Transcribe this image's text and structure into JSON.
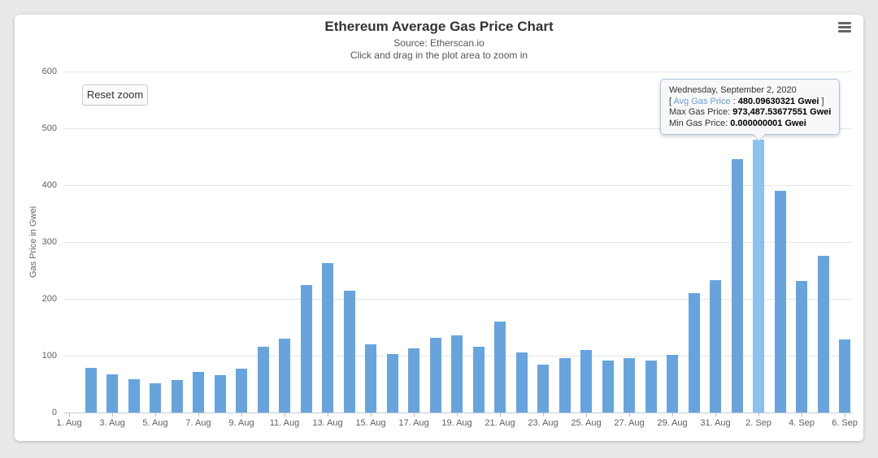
{
  "header": {
    "title": "Ethereum Average Gas Price Chart",
    "subtitle_source": "Source: Etherscan.io",
    "subtitle_hint": "Click and drag in the plot area to zoom in",
    "menu_icon": "hamburger-menu-icon"
  },
  "toolbar": {
    "reset_zoom_label": "Reset zoom"
  },
  "tooltip": {
    "date": "Wednesday, September 2, 2020",
    "avg_prefix": "[ ",
    "avg_label": "Avg Gas Price",
    "avg_sep": " : ",
    "avg_value": "480.09630321 Gwei",
    "avg_suffix": " ]",
    "max_label": "Max Gas Price: ",
    "max_value": "973,487.53677551 Gwei",
    "min_label": "Min Gas Price: ",
    "min_value": "0.000000001 Gwei"
  },
  "colors": {
    "bar": "#67a4de",
    "bar_hover": "#8cc0ee",
    "tooltip_border": "#a9c7e5",
    "avg_label_blue": "#6b9fd8",
    "gridline": "#e6e6e6",
    "axis_text": "#606060",
    "page_background": "#e9e9e9"
  },
  "chart_data": {
    "type": "bar",
    "title": "Ethereum Average Gas Price Chart",
    "subtitle": "Source: Etherscan.io — Click and drag in the plot area to zoom in",
    "xlabel": "",
    "ylabel": "Gas Price in Gwei",
    "ylim": [
      0,
      600
    ],
    "yticks": [
      0,
      100,
      200,
      300,
      400,
      500,
      600
    ],
    "grid": true,
    "legend": false,
    "dates": [
      "2020-08-01",
      "2020-08-02",
      "2020-08-03",
      "2020-08-04",
      "2020-08-05",
      "2020-08-06",
      "2020-08-07",
      "2020-08-08",
      "2020-08-09",
      "2020-08-10",
      "2020-08-11",
      "2020-08-12",
      "2020-08-13",
      "2020-08-14",
      "2020-08-15",
      "2020-08-16",
      "2020-08-17",
      "2020-08-18",
      "2020-08-19",
      "2020-08-20",
      "2020-08-21",
      "2020-08-22",
      "2020-08-23",
      "2020-08-24",
      "2020-08-25",
      "2020-08-26",
      "2020-08-27",
      "2020-08-28",
      "2020-08-29",
      "2020-08-30",
      "2020-08-31",
      "2020-09-01",
      "2020-09-02",
      "2020-09-03",
      "2020-09-04",
      "2020-09-05",
      "2020-09-06"
    ],
    "values": [
      0,
      78,
      67,
      58,
      52,
      57,
      72,
      66,
      77,
      116,
      130,
      224,
      263,
      214,
      120,
      103,
      113,
      131,
      136,
      115,
      160,
      105,
      84,
      96,
      110,
      91,
      95,
      92,
      101,
      210,
      233,
      445,
      480.09630321,
      390,
      232,
      276,
      129
    ],
    "x_tick_labels": [
      "1. Aug",
      "3. Aug",
      "5. Aug",
      "7. Aug",
      "9. Aug",
      "11. Aug",
      "13. Aug",
      "15. Aug",
      "17. Aug",
      "19. Aug",
      "21. Aug",
      "23. Aug",
      "25. Aug",
      "27. Aug",
      "29. Aug",
      "31. Aug",
      "2. Sep",
      "4. Sep",
      "6. Sep"
    ],
    "x_tick_every_n_days": 2,
    "highlight_index": 32,
    "highlight_tooltip": {
      "avg": 480.09630321,
      "max": 973487.53677551,
      "min": 1e-09,
      "unit": "Gwei"
    }
  }
}
